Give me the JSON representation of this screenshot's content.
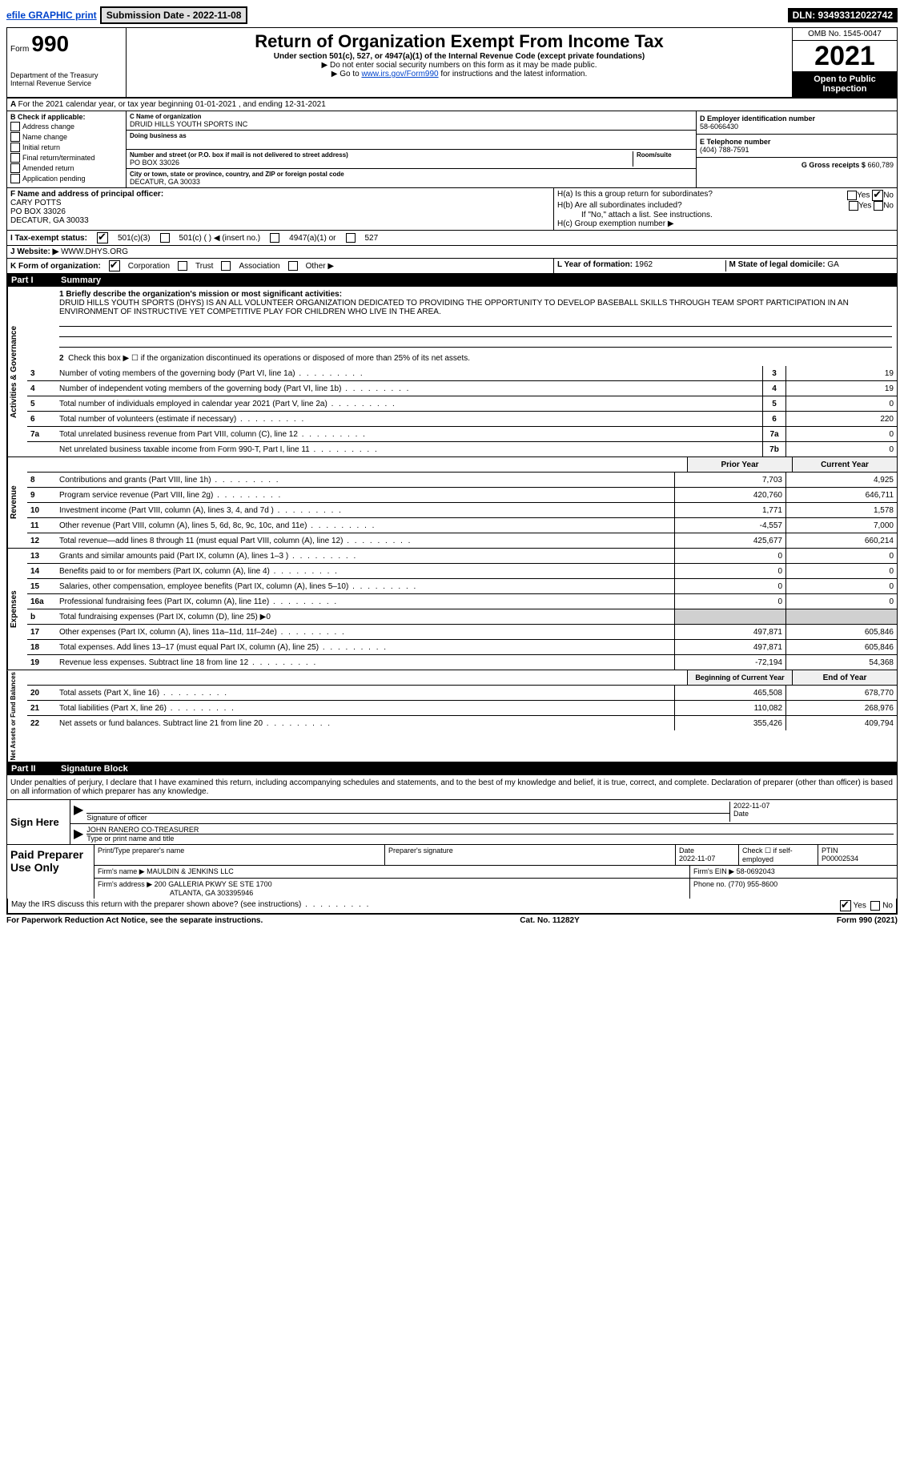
{
  "topbar": {
    "efile": "efile GRAPHIC print",
    "submission": "Submission Date - 2022-11-08",
    "dln": "DLN: 93493312022742"
  },
  "header": {
    "form_word": "Form",
    "form_no": "990",
    "dept": "Department of the Treasury",
    "irs": "Internal Revenue Service",
    "title": "Return of Organization Exempt From Income Tax",
    "sub": "Under section 501(c), 527, or 4947(a)(1) of the Internal Revenue Code (except private foundations)",
    "note1": "▶ Do not enter social security numbers on this form as it may be made public.",
    "note2_pre": "▶ Go to ",
    "note2_link": "www.irs.gov/Form990",
    "note2_post": " for instructions and the latest information.",
    "omb": "OMB No. 1545-0047",
    "year": "2021",
    "open": "Open to Public Inspection"
  },
  "section_a": "For the 2021 calendar year, or tax year beginning 01-01-2021    , and ending 12-31-2021",
  "block_b": {
    "title": "B Check if applicable:",
    "items": [
      "Address change",
      "Name change",
      "Initial return",
      "Final return/terminated",
      "Amended return",
      "Application pending"
    ],
    "c_label": "C Name of organization",
    "c_name": "DRUID HILLS YOUTH SPORTS INC",
    "dba_label": "Doing business as",
    "addr_label": "Number and street (or P.O. box if mail is not delivered to street address)",
    "room_label": "Room/suite",
    "addr": "PO BOX 33026",
    "city_label": "City or town, state or province, country, and ZIP or foreign postal code",
    "city": "DECATUR, GA  30033",
    "d_label": "D Employer identification number",
    "d_val": "58-6066430",
    "e_label": "E Telephone number",
    "e_val": "(404) 788-7591",
    "g_label": "G Gross receipts $",
    "g_val": "660,789"
  },
  "block_fh": {
    "f_label": "F Name and address of principal officer:",
    "f_name": "CARY POTTS",
    "f_addr1": "PO BOX 33026",
    "f_addr2": "DECATUR, GA  30033",
    "ha": "H(a)  Is this a group return for subordinates?",
    "hb": "H(b)  Are all subordinates included?",
    "hb_note": "If \"No,\" attach a list. See instructions.",
    "hc": "H(c)  Group exemption number ▶",
    "yes": "Yes",
    "no": "No"
  },
  "row_i": {
    "label": "I   Tax-exempt status:",
    "opt1": "501(c)(3)",
    "opt2": "501(c) (  ) ◀ (insert no.)",
    "opt3": "4947(a)(1) or",
    "opt4": "527"
  },
  "row_j": {
    "label": "J   Website: ▶",
    "val": "WWW.DHYS.ORG"
  },
  "row_k": {
    "label": "K Form of organization:",
    "opts": [
      "Corporation",
      "Trust",
      "Association",
      "Other ▶"
    ],
    "l_label": "L Year of formation:",
    "l_val": "1962",
    "m_label": "M State of legal domicile:",
    "m_val": "GA"
  },
  "part1": {
    "num": "Part I",
    "title": "Summary",
    "q1": "1   Briefly describe the organization's mission or most significant activities:",
    "mission": "DRUID HILLS YOUTH SPORTS (DHYS) IS AN ALL VOLUNTEER ORGANIZATION DEDICATED TO PROVIDING THE OPPORTUNITY TO DEVELOP BASEBALL SKILLS THROUGH TEAM SPORT PARTICIPATION IN AN ENVIRONMENT OF INSTRUCTIVE YET COMPETITIVE PLAY FOR CHILDREN WHO LIVE IN THE AREA.",
    "q2": "Check this box ▶ ☐  if the organization discontinued its operations or disposed of more than 25% of its net assets.",
    "tab_ag": "Activities & Governance",
    "tab_rev": "Revenue",
    "tab_exp": "Expenses",
    "tab_na": "Net Assets or Fund Balances",
    "rows_ag": [
      {
        "n": "3",
        "d": "Number of voting members of the governing body (Part VI, line 1a)",
        "b": "3",
        "v": "19"
      },
      {
        "n": "4",
        "d": "Number of independent voting members of the governing body (Part VI, line 1b)",
        "b": "4",
        "v": "19"
      },
      {
        "n": "5",
        "d": "Total number of individuals employed in calendar year 2021 (Part V, line 2a)",
        "b": "5",
        "v": "0"
      },
      {
        "n": "6",
        "d": "Total number of volunteers (estimate if necessary)",
        "b": "6",
        "v": "220"
      },
      {
        "n": "7a",
        "d": "Total unrelated business revenue from Part VIII, column (C), line 12",
        "b": "7a",
        "v": "0"
      },
      {
        "n": "",
        "d": "Net unrelated business taxable income from Form 990-T, Part I, line 11",
        "b": "7b",
        "v": "0"
      }
    ],
    "hdr_prior": "Prior Year",
    "hdr_curr": "Current Year",
    "rows_rev": [
      {
        "n": "8",
        "d": "Contributions and grants (Part VIII, line 1h)",
        "p": "7,703",
        "c": "4,925"
      },
      {
        "n": "9",
        "d": "Program service revenue (Part VIII, line 2g)",
        "p": "420,760",
        "c": "646,711"
      },
      {
        "n": "10",
        "d": "Investment income (Part VIII, column (A), lines 3, 4, and 7d )",
        "p": "1,771",
        "c": "1,578"
      },
      {
        "n": "11",
        "d": "Other revenue (Part VIII, column (A), lines 5, 6d, 8c, 9c, 10c, and 11e)",
        "p": "-4,557",
        "c": "7,000"
      },
      {
        "n": "12",
        "d": "Total revenue—add lines 8 through 11 (must equal Part VIII, column (A), line 12)",
        "p": "425,677",
        "c": "660,214"
      }
    ],
    "rows_exp": [
      {
        "n": "13",
        "d": "Grants and similar amounts paid (Part IX, column (A), lines 1–3 )",
        "p": "0",
        "c": "0"
      },
      {
        "n": "14",
        "d": "Benefits paid to or for members (Part IX, column (A), line 4)",
        "p": "0",
        "c": "0"
      },
      {
        "n": "15",
        "d": "Salaries, other compensation, employee benefits (Part IX, column (A), lines 5–10)",
        "p": "0",
        "c": "0"
      },
      {
        "n": "16a",
        "d": "Professional fundraising fees (Part IX, column (A), line 11e)",
        "p": "0",
        "c": "0"
      },
      {
        "n": "b",
        "d": "Total fundraising expenses (Part IX, column (D), line 25) ▶0",
        "p": "",
        "c": "",
        "shaded": true
      },
      {
        "n": "17",
        "d": "Other expenses (Part IX, column (A), lines 11a–11d, 11f–24e)",
        "p": "497,871",
        "c": "605,846"
      },
      {
        "n": "18",
        "d": "Total expenses. Add lines 13–17 (must equal Part IX, column (A), line 25)",
        "p": "497,871",
        "c": "605,846"
      },
      {
        "n": "19",
        "d": "Revenue less expenses. Subtract line 18 from line 12",
        "p": "-72,194",
        "c": "54,368"
      }
    ],
    "hdr_beg": "Beginning of Current Year",
    "hdr_end": "End of Year",
    "rows_na": [
      {
        "n": "20",
        "d": "Total assets (Part X, line 16)",
        "p": "465,508",
        "c": "678,770"
      },
      {
        "n": "21",
        "d": "Total liabilities (Part X, line 26)",
        "p": "110,082",
        "c": "268,976"
      },
      {
        "n": "22",
        "d": "Net assets or fund balances. Subtract line 21 from line 20",
        "p": "355,426",
        "c": "409,794"
      }
    ]
  },
  "part2": {
    "num": "Part II",
    "title": "Signature Block",
    "decl": "Under penalties of perjury, I declare that I have examined this return, including accompanying schedules and statements, and to the best of my knowledge and belief, it is true, correct, and complete. Declaration of preparer (other than officer) is based on all information of which preparer has any knowledge.",
    "sign_here": "Sign Here",
    "sig_officer": "Signature of officer",
    "date": "Date",
    "date_val": "2022-11-07",
    "name_title": "JOHN RANERO  CO-TREASURER",
    "type_name": "Type or print name and title",
    "paid": "Paid Preparer Use Only",
    "p_name_label": "Print/Type preparer's name",
    "p_sig_label": "Preparer's signature",
    "p_date_label": "Date",
    "p_date": "2022-11-07",
    "p_check": "Check ☐ if self-employed",
    "ptin_label": "PTIN",
    "ptin": "P00002534",
    "firm_name_label": "Firm's name    ▶",
    "firm_name": "MAULDIN & JENKINS LLC",
    "firm_ein_label": "Firm's EIN ▶",
    "firm_ein": "58-0692043",
    "firm_addr_label": "Firm's address ▶",
    "firm_addr1": "200 GALLERIA PKWY SE STE 1700",
    "firm_addr2": "ATLANTA, GA  303395946",
    "phone_label": "Phone no.",
    "phone": "(770) 955-8600",
    "discuss": "May the IRS discuss this return with the preparer shown above? (see instructions)"
  },
  "footer": {
    "pra": "For Paperwork Reduction Act Notice, see the separate instructions.",
    "cat": "Cat. No. 11282Y",
    "form": "Form 990 (2021)"
  }
}
